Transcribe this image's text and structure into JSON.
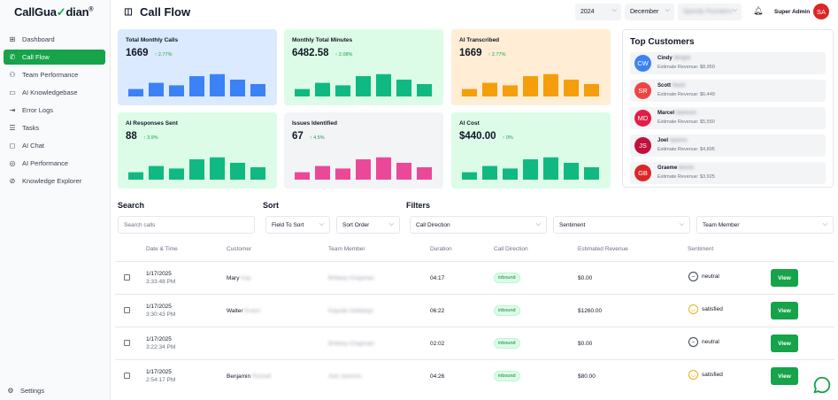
{
  "brand": {
    "name_part1": "CallGua",
    "name_accent": "✓",
    "name_part2": "dian",
    "mark": "®"
  },
  "sidebar": {
    "items": [
      {
        "label": "Dashboard",
        "icon": "grid-icon",
        "glyph": "⊞",
        "active": false
      },
      {
        "label": "Call Flow",
        "icon": "phone-icon",
        "glyph": "✆",
        "active": true
      },
      {
        "label": "Team Performance",
        "icon": "users-icon",
        "glyph": "⚇",
        "active": false
      },
      {
        "label": "AI Knowledgebase",
        "icon": "book-icon",
        "glyph": "▭",
        "active": false
      },
      {
        "label": "Error Logs",
        "icon": "logout-icon",
        "glyph": "⇥",
        "active": false
      },
      {
        "label": "Tasks",
        "icon": "list-icon",
        "glyph": "☰",
        "active": false
      },
      {
        "label": "AI Chat",
        "icon": "chat-icon",
        "glyph": "◻",
        "active": false
      },
      {
        "label": "AI Performance",
        "icon": "target-icon",
        "glyph": "◎",
        "active": false
      },
      {
        "label": "Knowledge Explorer",
        "icon": "compass-icon",
        "glyph": "⊘",
        "active": false
      }
    ],
    "settings_label": "Settings"
  },
  "header": {
    "title": "Call Flow",
    "year": "2024",
    "month": "December",
    "account": "Speedy Plumbers",
    "role": "Super Admin",
    "avatar": "SA"
  },
  "cards": [
    {
      "title": "Total Monthly Calls",
      "value": "1669",
      "change": "↑ 2.77%",
      "bg": "#dbeafe",
      "bar": "#3b82f6",
      "bars": [
        0.3,
        0.55,
        0.45,
        0.82,
        0.9,
        0.68,
        0.5
      ]
    },
    {
      "title": "Monthly Total Minutes",
      "value": "6482.58",
      "change": "↑ 2.08%",
      "bg": "#dcfce7",
      "bar": "#10b981",
      "bars": [
        0.3,
        0.55,
        0.45,
        0.82,
        0.9,
        0.68,
        0.5
      ]
    },
    {
      "title": "AI Transcribed",
      "value": "1669",
      "change": "↑ 2.77%",
      "bg": "#ffedd5",
      "bar": "#f59e0b",
      "bars": [
        0.3,
        0.55,
        0.45,
        0.82,
        0.9,
        0.68,
        0.5
      ]
    },
    {
      "title": "AI Responses Sent",
      "value": "88",
      "change": "↑ 3.9%",
      "bg": "#dcfce7",
      "bar": "#10b981",
      "bars": [
        0.3,
        0.55,
        0.45,
        0.82,
        0.9,
        0.68,
        0.5
      ]
    },
    {
      "title": "Issues Identified",
      "value": "67",
      "change": "↑ 4.5%",
      "bg": "#f3f4f6",
      "bar": "#ec4899",
      "bars": [
        0.3,
        0.55,
        0.45,
        0.82,
        0.9,
        0.68,
        0.5
      ]
    },
    {
      "title": "AI Cost",
      "value": "$440.00",
      "change": "↑ 0%",
      "bg": "#dcfce7",
      "bar": "#10b981",
      "bars": [
        0.3,
        0.55,
        0.45,
        0.82,
        0.9,
        0.68,
        0.5
      ]
    }
  ],
  "top_customers": {
    "title": "Top Customers",
    "items": [
      {
        "initials": "CW",
        "first": "Cindy",
        "last": "Wright",
        "revenue": "Estimate Revenue: $8,950",
        "color": "#3b82f6"
      },
      {
        "initials": "SR",
        "first": "Scott",
        "last": "Reed",
        "revenue": "Estimate Revenue: $6,449",
        "color": "#ef4444"
      },
      {
        "initials": "MD",
        "first": "Marcel",
        "last": "Dawson",
        "revenue": "Estimate Revenue: $5,550",
        "color": "#e11d48"
      },
      {
        "initials": "JS",
        "first": "Joel",
        "last": "Sparks",
        "revenue": "Estimate Revenue: $4,895",
        "color": "#be123c"
      },
      {
        "initials": "GB",
        "first": "Graeme",
        "last": "Burns",
        "revenue": "Estimate Revenue: $3,925",
        "color": "#dc2626"
      }
    ]
  },
  "controls": {
    "search_label": "Search",
    "search_placeholder": "Search calls",
    "sort_label": "Sort",
    "sort_field": "Field To Sort",
    "sort_order": "Sort Order",
    "filters_label": "Filters",
    "filter_direction": "Call Direction",
    "filter_sentiment": "Sentiment",
    "filter_member": "Team Member"
  },
  "table": {
    "headers": [
      "Date & Time",
      "Customer",
      "Team Member",
      "Duration",
      "Call Direction",
      "Estimated Revenue",
      "Sentiment"
    ],
    "view_label": "View",
    "rows": [
      {
        "date": "1/17/2025",
        "time": "3:33:48 PM",
        "customer_first": "Mary",
        "customer_last": "Kay",
        "member": "Brittany Chapman",
        "duration": "04:17",
        "direction": "inbound",
        "revenue": "$0.00",
        "sentiment": "neutral"
      },
      {
        "date": "1/17/2025",
        "time": "3:30:43 PM",
        "customer_first": "Walter",
        "customer_last": "Evans",
        "member": "Kayode Adebanjo",
        "duration": "06:22",
        "direction": "inbound",
        "revenue": "$1260.00",
        "sentiment": "satisfied"
      },
      {
        "date": "1/17/2025",
        "time": "3:22:34 PM",
        "customer_first": "",
        "customer_last": "",
        "member": "Brittany Chapman",
        "duration": "02:02",
        "direction": "inbound",
        "revenue": "$0.00",
        "sentiment": "neutral"
      },
      {
        "date": "1/17/2025",
        "time": "2:54:17 PM",
        "customer_first": "Benjamin",
        "customer_last": "Russell",
        "member": "Joel Jackson",
        "duration": "04:26",
        "direction": "inbound",
        "revenue": "$80.00",
        "sentiment": "satisfied"
      }
    ]
  }
}
